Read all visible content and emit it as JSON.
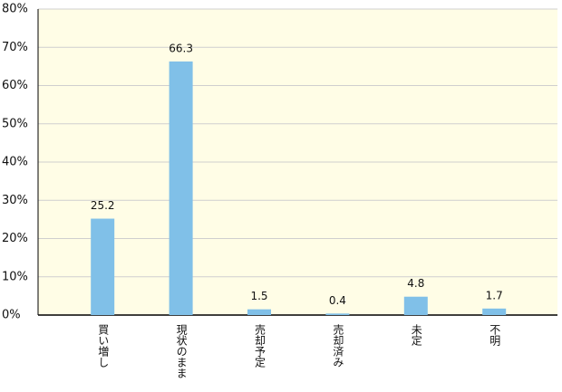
{
  "chart_data": {
    "type": "bar",
    "categories": [
      "買い増し",
      "現状のまま",
      "売却予定",
      "売却済み",
      "未定",
      "不明"
    ],
    "values": [
      25.2,
      66.3,
      1.5,
      0.4,
      4.8,
      1.7
    ],
    "color": "#80c0e8",
    "ylim": [
      0,
      80
    ],
    "yticks": [
      {
        "value": 0,
        "label": "0%"
      },
      {
        "value": 10,
        "label": "10%"
      },
      {
        "value": 20,
        "label": "20%"
      },
      {
        "value": 30,
        "label": "30%"
      },
      {
        "value": 40,
        "label": "40%"
      },
      {
        "value": 50,
        "label": "50%"
      },
      {
        "value": 60,
        "label": "60%"
      },
      {
        "value": 70,
        "label": "70%"
      },
      {
        "value": 80,
        "label": "80%"
      }
    ],
    "grid": true
  }
}
